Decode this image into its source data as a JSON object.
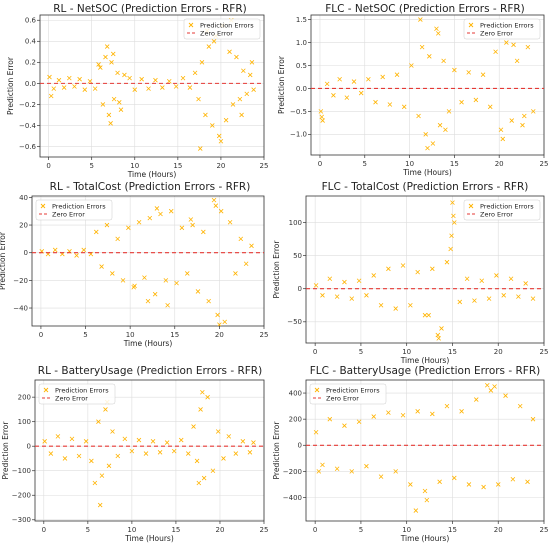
{
  "figure_colors": {
    "points": "#FFB300",
    "zero_line": "#E53935",
    "grid": "#dddddd",
    "axis": "#333333"
  },
  "chart_data": [
    {
      "type": "scatter",
      "title": "RL - NetSOC (Prediction Errors - RFR)",
      "xlabel": "Time (Hours)",
      "ylabel": "Prediction Error",
      "xlim": [
        -1,
        25
      ],
      "ylim": [
        -0.7,
        0.65
      ],
      "xticks": [
        0,
        5,
        10,
        15,
        20,
        25
      ],
      "yticks": [
        -0.6,
        -0.4,
        -0.2,
        0.0,
        0.2,
        0.4,
        0.6
      ],
      "ytick_labels": [
        "−0.6",
        "−0.4",
        "−0.2",
        "0.0",
        "0.2",
        "0.4",
        "0.6"
      ],
      "grid": true,
      "legend_position": "top-right",
      "series": [
        {
          "name": "Prediction Errors",
          "marker": "x",
          "color": "#FFB300",
          "x": [
            0.1,
            0.6,
            1.2,
            1.8,
            2.4,
            3.0,
            3.6,
            4.2,
            4.8,
            5.4,
            6.0,
            6.3,
            6.6,
            7.0,
            7.3,
            7.6,
            8.0,
            8.4,
            8.8,
            9.4,
            10.0,
            10.8,
            11.6,
            12.4,
            13.2,
            14.0,
            14.8,
            15.6,
            16.4,
            17.0,
            17.4,
            17.8,
            18.2,
            18.6,
            19.0,
            19.4,
            19.8,
            20.2,
            20.6,
            21.0,
            21.4,
            21.8,
            22.2,
            22.6,
            23.0,
            23.4,
            23.8,
            6.8,
            7.2,
            7.5,
            8.2,
            17.6,
            18.4,
            19.2,
            20.0,
            21.2,
            22.4,
            23.6,
            0.3,
            5.8
          ],
          "y": [
            0.06,
            -0.05,
            0.03,
            -0.04,
            0.05,
            -0.03,
            0.04,
            -0.06,
            0.02,
            -0.05,
            0.15,
            -0.2,
            0.25,
            -0.3,
            0.2,
            -0.15,
            0.1,
            -0.25,
            0.08,
            0.05,
            -0.06,
            0.04,
            -0.05,
            0.03,
            -0.04,
            0.02,
            -0.03,
            0.05,
            -0.04,
            0.1,
            -0.15,
            0.2,
            -0.3,
            0.35,
            -0.4,
            0.45,
            -0.5,
            0.55,
            -0.35,
            0.3,
            -0.2,
            0.25,
            -0.15,
            0.12,
            -0.1,
            0.08,
            -0.06,
            0.35,
            -0.38,
            0.28,
            -0.18,
            -0.62,
            0.5,
            0.4,
            -0.55,
            0.6,
            -0.3,
            0.2,
            -0.12,
            0.18
          ]
        }
      ],
      "reference_line": {
        "name": "Zero Error",
        "y": 0,
        "style": "dashed",
        "color": "#E53935"
      }
    },
    {
      "type": "scatter",
      "title": "FLC - NetSOC (Prediction Errors - RFR)",
      "xlabel": "Time (Hours)",
      "ylabel": "Prediction Error",
      "xlim": [
        -1,
        25
      ],
      "ylim": [
        -1.45,
        1.6
      ],
      "xticks": [
        0,
        5,
        10,
        15,
        20,
        25
      ],
      "yticks": [
        -1.0,
        -0.5,
        0.0,
        0.5,
        1.0,
        1.5
      ],
      "ytick_labels": [
        "−1.0",
        "−0.5",
        "0.0",
        "0.5",
        "1.0",
        "1.5"
      ],
      "grid": true,
      "legend_position": "top-right",
      "series": [
        {
          "name": "Prediction Errors",
          "marker": "x",
          "color": "#FFB300",
          "x": [
            0.1,
            0.3,
            0.8,
            1.5,
            2.2,
            3.0,
            3.8,
            4.6,
            5.4,
            6.2,
            7.0,
            7.8,
            8.6,
            9.4,
            10.2,
            11.0,
            11.4,
            11.8,
            12.2,
            12.6,
            13.0,
            13.4,
            13.8,
            14.4,
            15.0,
            15.8,
            16.6,
            17.4,
            18.2,
            19.0,
            19.6,
            20.2,
            20.8,
            21.4,
            22.0,
            22.6,
            23.2,
            23.8,
            11.2,
            12.0,
            13.2,
            14.0,
            20.4,
            21.6,
            22.8,
            0.2
          ],
          "y": [
            -0.5,
            -0.7,
            0.1,
            -0.15,
            0.2,
            -0.2,
            0.15,
            -0.1,
            0.2,
            -0.3,
            0.25,
            -0.35,
            0.3,
            -0.4,
            0.5,
            -0.6,
            0.9,
            -1.0,
            0.7,
            -1.2,
            1.3,
            -0.8,
            0.6,
            -0.5,
            0.4,
            -0.3,
            0.35,
            -0.25,
            0.3,
            -0.4,
            0.8,
            -0.9,
            1.0,
            -0.7,
            0.6,
            -0.8,
            0.9,
            -0.5,
            1.5,
            -1.3,
            1.2,
            -0.9,
            -1.1,
            0.95,
            -0.6,
            -0.62
          ]
        }
      ],
      "reference_line": {
        "name": "Zero Error",
        "y": 0,
        "style": "dashed",
        "color": "#E53935"
      }
    },
    {
      "type": "scatter",
      "title": "RL - TotalCost (Prediction Errors - RFR)",
      "xlabel": "Time (Hours)",
      "ylabel": "Prediction Error",
      "xlim": [
        -1,
        25
      ],
      "ylim": [
        -53,
        41
      ],
      "xticks": [
        0,
        5,
        10,
        15,
        20,
        25
      ],
      "yticks": [
        -40,
        -20,
        0,
        20,
        40
      ],
      "ytick_labels": [
        "−40",
        "−20",
        "0",
        "20",
        "40"
      ],
      "grid": true,
      "legend_position": "top-left",
      "series": [
        {
          "name": "Prediction Errors",
          "marker": "x",
          "color": "#FFB300",
          "x": [
            0.1,
            0.8,
            1.6,
            2.4,
            3.2,
            4.0,
            4.8,
            5.6,
            6.2,
            6.8,
            7.4,
            8.0,
            8.6,
            9.2,
            9.8,
            10.4,
            11.0,
            11.6,
            12.2,
            12.8,
            13.4,
            14.0,
            14.6,
            15.2,
            15.8,
            16.4,
            17.0,
            17.6,
            18.2,
            18.8,
            19.4,
            19.8,
            20.2,
            20.6,
            21.2,
            21.8,
            22.4,
            23.0,
            23.6,
            12.0,
            13.0,
            14.2,
            19.6,
            20.0,
            10.5,
            16.8
          ],
          "y": [
            1,
            -1,
            2,
            -1,
            1,
            -2,
            2,
            -1,
            15,
            -10,
            20,
            -15,
            10,
            -20,
            18,
            -25,
            22,
            -18,
            25,
            -30,
            28,
            -20,
            30,
            -22,
            18,
            -15,
            20,
            -28,
            15,
            -35,
            38,
            -45,
            30,
            -50,
            22,
            -15,
            10,
            -8,
            5,
            -35,
            32,
            -38,
            34,
            -52,
            -24,
            24
          ]
        }
      ],
      "reference_line": {
        "name": "Zero Error",
        "y": 0,
        "style": "dashed",
        "color": "#E53935"
      }
    },
    {
      "type": "scatter",
      "title": "FLC - TotalCost (Prediction Errors - RFR)",
      "xlabel": "Time (Hours)",
      "ylabel": "Prediction Error",
      "xlim": [
        -1,
        25
      ],
      "ylim": [
        -82,
        140
      ],
      "xticks": [
        0,
        5,
        10,
        15,
        20,
        25
      ],
      "yticks": [
        -50,
        0,
        50,
        100
      ],
      "ytick_labels": [
        "−50",
        "0",
        "50",
        "100"
      ],
      "grid": true,
      "legend_position": "top-right",
      "series": [
        {
          "name": "Prediction Errors",
          "marker": "x",
          "color": "#FFB300",
          "x": [
            0.1,
            0.8,
            1.6,
            2.4,
            3.2,
            4.0,
            4.8,
            5.6,
            6.4,
            7.2,
            8.0,
            8.8,
            9.6,
            10.4,
            11.2,
            12.0,
            12.8,
            13.4,
            13.8,
            14.4,
            14.8,
            15.0,
            15.2,
            15.8,
            16.6,
            17.4,
            18.2,
            19.0,
            19.8,
            20.6,
            21.4,
            22.2,
            23.0,
            23.8,
            13.5,
            14.9,
            15.1,
            12.4
          ],
          "y": [
            5,
            -10,
            15,
            -12,
            10,
            -15,
            12,
            -10,
            20,
            -25,
            30,
            -30,
            35,
            -25,
            25,
            -40,
            30,
            -70,
            -60,
            40,
            60,
            130,
            100,
            -20,
            15,
            -18,
            12,
            -15,
            20,
            -10,
            15,
            -12,
            8,
            -15,
            -75,
            80,
            110,
            -40
          ]
        }
      ],
      "reference_line": {
        "name": "Zero Error",
        "y": 0,
        "style": "dashed",
        "color": "#E53935"
      }
    },
    {
      "type": "scatter",
      "title": "RL - BatteryUsage (Prediction Errors - RFR)",
      "xlabel": "Time (Hours)",
      "ylabel": "Prediction Error",
      "xlim": [
        -1,
        25
      ],
      "ylim": [
        -305,
        270
      ],
      "xticks": [
        0,
        5,
        10,
        15,
        20,
        25
      ],
      "yticks": [
        -300,
        -200,
        -100,
        0,
        100,
        200
      ],
      "ytick_labels": [
        "−300",
        "−200",
        "−100",
        "0",
        "100",
        "200"
      ],
      "grid": true,
      "legend_position": "top-left",
      "series": [
        {
          "name": "Prediction Errors",
          "marker": "x",
          "color": "#FFB300",
          "x": [
            0.1,
            0.8,
            1.6,
            2.4,
            3.2,
            4.0,
            4.8,
            5.4,
            5.8,
            6.2,
            6.6,
            7.0,
            7.4,
            7.8,
            8.4,
            9.2,
            10.0,
            10.8,
            11.6,
            12.4,
            13.2,
            14.0,
            14.8,
            15.6,
            16.4,
            17.0,
            17.4,
            17.8,
            18.2,
            18.6,
            19.2,
            19.8,
            20.4,
            21.0,
            21.8,
            22.6,
            23.4,
            23.8,
            6.4,
            7.2,
            17.6,
            18.0
          ],
          "y": [
            20,
            -30,
            40,
            -50,
            30,
            -40,
            20,
            -60,
            -150,
            100,
            -120,
            150,
            -80,
            60,
            -40,
            30,
            -20,
            25,
            -30,
            20,
            -25,
            15,
            -20,
            25,
            -30,
            80,
            -60,
            150,
            -130,
            200,
            -100,
            60,
            -50,
            40,
            -30,
            20,
            -25,
            15,
            -240,
            180,
            -150,
            220
          ]
        }
      ],
      "reference_line": {
        "name": "Zero Error",
        "y": 0,
        "style": "dashed",
        "color": "#E53935"
      }
    },
    {
      "type": "scatter",
      "title": "FLC - BatteryUsage (Prediction Errors - RFR)",
      "xlabel": "Time (Hours)",
      "ylabel": "Prediction Error",
      "xlim": [
        -1,
        25
      ],
      "ylim": [
        -580,
        500
      ],
      "xticks": [
        0,
        5,
        10,
        15,
        20,
        25
      ],
      "yticks": [
        -400,
        -200,
        0,
        200,
        400
      ],
      "ytick_labels": [
        "−400",
        "−200",
        "0",
        "200",
        "400"
      ],
      "grid": true,
      "legend_position": "top-left",
      "series": [
        {
          "name": "Prediction Errors",
          "marker": "x",
          "color": "#FFB300",
          "x": [
            0.1,
            0.8,
            1.6,
            2.4,
            3.2,
            4.0,
            4.8,
            5.6,
            6.4,
            7.2,
            8.0,
            8.8,
            9.6,
            10.4,
            11.2,
            12.0,
            12.8,
            13.6,
            14.4,
            15.2,
            16.0,
            16.8,
            17.6,
            18.4,
            19.2,
            20.0,
            20.8,
            21.6,
            22.4,
            23.2,
            23.8,
            11.0,
            12.2,
            18.8,
            19.6,
            0.4
          ],
          "y": [
            100,
            -150,
            200,
            -180,
            150,
            -200,
            180,
            -160,
            220,
            -240,
            250,
            -200,
            230,
            -300,
            260,
            -350,
            240,
            -280,
            300,
            -250,
            260,
            -300,
            350,
            -320,
            420,
            -300,
            380,
            -260,
            300,
            -280,
            200,
            -500,
            -420,
            460,
            450,
            -200
          ]
        }
      ],
      "reference_line": {
        "name": "Zero Error",
        "y": 0,
        "style": "dashed",
        "color": "#E53935"
      }
    }
  ]
}
